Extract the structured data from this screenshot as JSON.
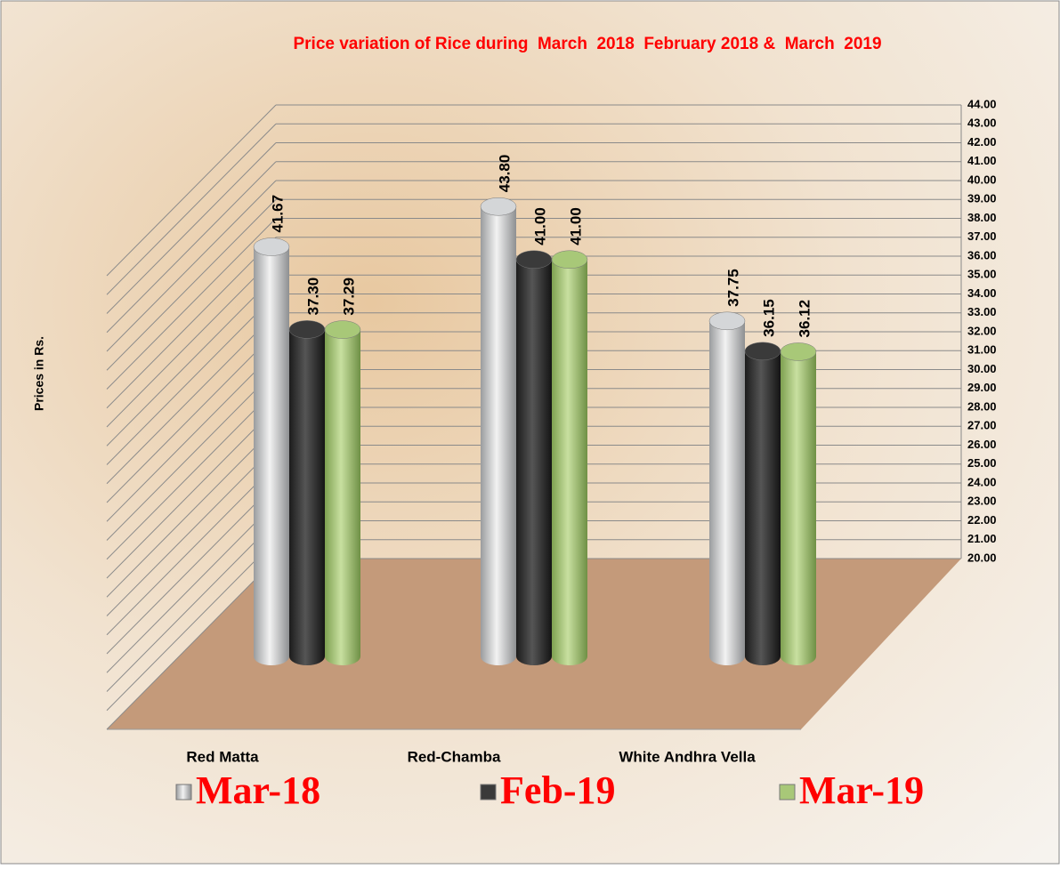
{
  "chart_data": {
    "type": "bar3d",
    "title": "Price variation of Rice during  March  2018  February 2018 &  March  2019",
    "y_label": "Prices in Rs.",
    "categories": [
      "Red Matta",
      "Red-Chamba",
      "White Andhra Vella"
    ],
    "series": [
      {
        "name": "Mar-18",
        "color": "#d4d6d8",
        "values": [
          41.67,
          43.8,
          37.75
        ],
        "value_labels": [
          "41.67",
          "43.80",
          "37.75"
        ]
      },
      {
        "name": "Feb-19",
        "color": "#3a3a3a",
        "values": [
          37.3,
          41.0,
          36.15
        ],
        "value_labels": [
          "37.30",
          "41.00",
          "36.15"
        ]
      },
      {
        "name": "Mar-19",
        "color": "#a8c878",
        "values": [
          37.29,
          41.0,
          36.12
        ],
        "value_labels": [
          "37.29",
          "41.00",
          "36.12"
        ]
      }
    ],
    "ylim": [
      20,
      44
    ],
    "yticks": [
      {
        "value": 20,
        "label": "20.00"
      },
      {
        "value": 21,
        "label": "21.00"
      },
      {
        "value": 22,
        "label": "22.00"
      },
      {
        "value": 23,
        "label": "23.00"
      },
      {
        "value": 24,
        "label": "24.00"
      },
      {
        "value": 25,
        "label": "25.00"
      },
      {
        "value": 26,
        "label": "26.00"
      },
      {
        "value": 27,
        "label": "27.00"
      },
      {
        "value": 28,
        "label": "28.00"
      },
      {
        "value": 29,
        "label": "29.00"
      },
      {
        "value": 30,
        "label": "30.00"
      },
      {
        "value": 31,
        "label": "31.00"
      },
      {
        "value": 32,
        "label": "32.00"
      },
      {
        "value": 33,
        "label": "33.00"
      },
      {
        "value": 34,
        "label": "34.00"
      },
      {
        "value": 35,
        "label": "35.00"
      },
      {
        "value": 36,
        "label": "36.00"
      },
      {
        "value": 37,
        "label": "37.00"
      },
      {
        "value": 38,
        "label": "38.00"
      },
      {
        "value": 39,
        "label": "39.00"
      },
      {
        "value": 40,
        "label": "40.00"
      },
      {
        "value": 41,
        "label": "41.00"
      },
      {
        "value": 42,
        "label": "42.00"
      },
      {
        "value": 43,
        "label": "43.00"
      },
      {
        "value": 44,
        "label": "44.00"
      }
    ],
    "grid": true
  }
}
